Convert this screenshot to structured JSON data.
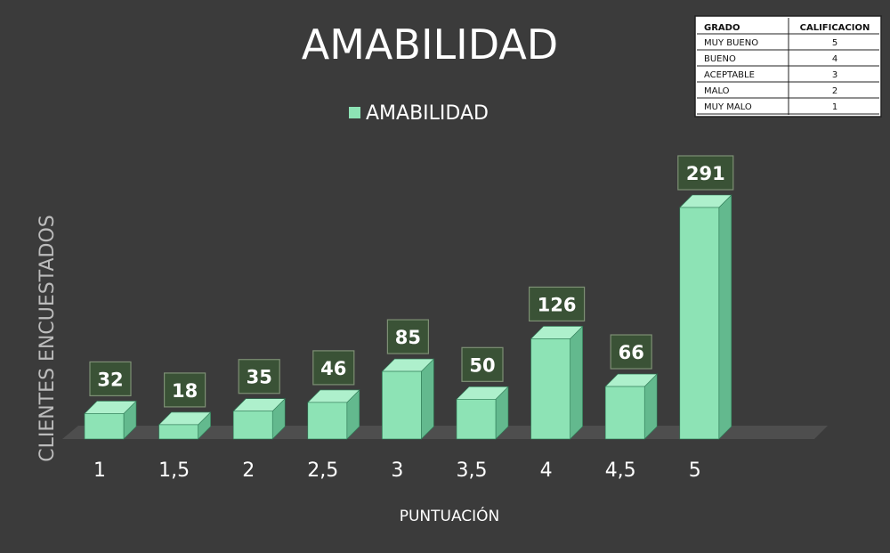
{
  "chart_data": {
    "type": "bar",
    "title": "AMABILIDAD",
    "xlabel": "PUNTUACIÓN",
    "ylabel": "CLIENTES ENCUESTADOS",
    "categories": [
      "1",
      "1,5",
      "2",
      "2,5",
      "3",
      "3,5",
      "4",
      "4,5",
      "5"
    ],
    "series": [
      {
        "name": "AMABILIDAD",
        "values": [
          32,
          18,
          35,
          46,
          85,
          50,
          126,
          66,
          291
        ]
      }
    ],
    "ylim": [
      0,
      291
    ],
    "grid": false,
    "legend": "top-center",
    "bar_style": "3d"
  },
  "colors": {
    "background": "#3b3b3b",
    "bar_front": "#8de3b5",
    "bar_side": "#63b98e",
    "bar_top": "#aef0cc",
    "label_box": "#3a5236",
    "floor": "#4e4e4e"
  },
  "grade_table": {
    "headers": [
      "GRADO",
      "CALIFICACION"
    ],
    "rows": [
      [
        "MUY BUENO",
        "5"
      ],
      [
        "BUENO",
        "4"
      ],
      [
        "ACEPTABLE",
        "3"
      ],
      [
        "MALO",
        "2"
      ],
      [
        "MUY MALO",
        "1"
      ]
    ]
  }
}
